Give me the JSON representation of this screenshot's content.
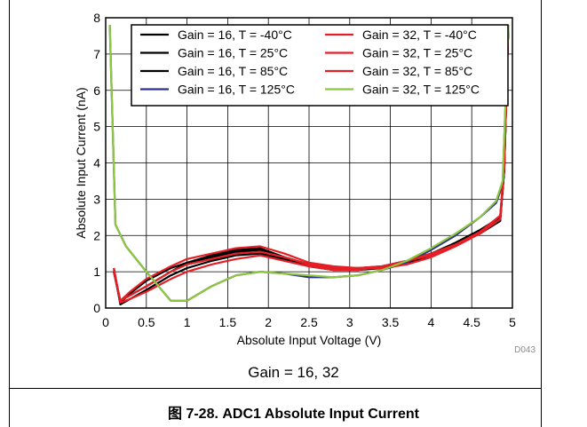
{
  "chart_data": {
    "type": "line",
    "title": "",
    "xlabel": "Absolute Input Voltage (V)",
    "ylabel": "Absolute Input Current (nA)",
    "xlim": [
      0,
      5
    ],
    "ylim": [
      0,
      8
    ],
    "xticks": [
      "0",
      "0.5",
      "1",
      "1.5",
      "2",
      "2.5",
      "3",
      "3.5",
      "4",
      "4.5",
      "5"
    ],
    "yticks": [
      "0",
      "1",
      "2",
      "3",
      "4",
      "5",
      "6",
      "7",
      "8"
    ],
    "grid": true,
    "legend_position": "top-right",
    "series": [
      {
        "name": "Gain = 16, T = -40°C",
        "color": "#000000",
        "x": [
          0.1,
          0.18,
          0.3,
          0.5,
          0.8,
          1.0,
          1.3,
          1.6,
          1.9,
          2.2,
          2.5,
          2.8,
          3.1,
          3.4,
          3.7,
          4.0,
          4.3,
          4.6,
          4.85,
          4.9,
          4.95
        ],
        "y": [
          1.0,
          0.2,
          0.35,
          0.6,
          1.0,
          1.25,
          1.45,
          1.6,
          1.65,
          1.4,
          1.2,
          1.1,
          1.05,
          1.1,
          1.25,
          1.45,
          1.75,
          2.1,
          2.45,
          3.8,
          7.8
        ]
      },
      {
        "name": "Gain = 16, T = 25°C",
        "color": "#000000",
        "x": [
          0.1,
          0.18,
          0.3,
          0.5,
          0.8,
          1.0,
          1.3,
          1.6,
          1.9,
          2.2,
          2.5,
          2.8,
          3.1,
          3.4,
          3.7,
          4.0,
          4.3,
          4.6,
          4.85,
          4.9,
          4.95
        ],
        "y": [
          1.0,
          0.15,
          0.4,
          0.75,
          1.1,
          1.25,
          1.4,
          1.55,
          1.6,
          1.4,
          1.2,
          1.1,
          1.1,
          1.15,
          1.3,
          1.5,
          1.8,
          2.15,
          2.5,
          3.8,
          7.8
        ]
      },
      {
        "name": "Gain = 16, T = 85°C",
        "color": "#000000",
        "x": [
          0.1,
          0.18,
          0.3,
          0.5,
          0.8,
          1.0,
          1.3,
          1.6,
          1.9,
          2.2,
          2.5,
          2.8,
          3.1,
          3.4,
          3.7,
          4.0,
          4.3,
          4.6,
          4.85,
          4.9,
          4.95
        ],
        "y": [
          1.1,
          0.1,
          0.25,
          0.5,
          0.9,
          1.1,
          1.3,
          1.45,
          1.5,
          1.35,
          1.15,
          1.05,
          1.05,
          1.15,
          1.3,
          1.5,
          1.75,
          2.05,
          2.4,
          3.8,
          7.8
        ]
      },
      {
        "name": "Gain = 16, T = 125°C",
        "color": "#2e3192",
        "x": [
          0.05,
          0.12,
          0.25,
          0.5,
          0.8,
          1.0,
          1.3,
          1.6,
          1.9,
          2.2,
          2.5,
          2.8,
          3.1,
          3.4,
          3.7,
          4.0,
          4.3,
          4.6,
          4.8,
          4.88,
          4.95
        ],
        "y": [
          7.8,
          2.3,
          1.7,
          1.0,
          0.2,
          0.2,
          0.6,
          0.9,
          1.0,
          0.95,
          0.85,
          0.85,
          0.9,
          1.05,
          1.25,
          1.6,
          2.0,
          2.5,
          2.9,
          3.4,
          7.8
        ]
      },
      {
        "name": "Gain = 32, T = -40°C",
        "color": "#e41f26",
        "x": [
          0.1,
          0.18,
          0.3,
          0.5,
          0.8,
          1.0,
          1.3,
          1.6,
          1.9,
          2.2,
          2.5,
          2.8,
          3.1,
          3.4,
          3.7,
          4.0,
          4.3,
          4.6,
          4.85,
          4.9,
          4.95
        ],
        "y": [
          1.0,
          0.2,
          0.45,
          0.8,
          1.15,
          1.35,
          1.5,
          1.65,
          1.7,
          1.5,
          1.25,
          1.15,
          1.1,
          1.1,
          1.2,
          1.4,
          1.7,
          2.05,
          2.55,
          3.9,
          7.8
        ]
      },
      {
        "name": "Gain = 32, T = 25°C",
        "color": "#e41f26",
        "x": [
          0.1,
          0.18,
          0.3,
          0.5,
          0.8,
          1.0,
          1.3,
          1.6,
          1.9,
          2.2,
          2.5,
          2.8,
          3.1,
          3.4,
          3.7,
          4.0,
          4.3,
          4.6,
          4.85,
          4.9,
          4.95
        ],
        "y": [
          1.05,
          0.2,
          0.35,
          0.6,
          1.0,
          1.2,
          1.35,
          1.5,
          1.55,
          1.4,
          1.2,
          1.1,
          1.1,
          1.15,
          1.3,
          1.45,
          1.75,
          2.1,
          2.55,
          3.9,
          7.8
        ]
      },
      {
        "name": "Gain = 32, T = 85°C",
        "color": "#e41f26",
        "x": [
          0.1,
          0.18,
          0.3,
          0.5,
          0.8,
          1.0,
          1.3,
          1.6,
          1.9,
          2.2,
          2.5,
          2.8,
          3.1,
          3.4,
          3.7,
          4.0,
          4.3,
          4.6,
          4.85,
          4.9,
          4.95
        ],
        "y": [
          1.1,
          0.15,
          0.25,
          0.45,
          0.8,
          1.0,
          1.2,
          1.35,
          1.45,
          1.3,
          1.15,
          1.05,
          1.05,
          1.15,
          1.3,
          1.5,
          1.75,
          2.05,
          2.45,
          3.9,
          7.8
        ]
      },
      {
        "name": "Gain = 32, T = 125°C",
        "color": "#8dc63f",
        "x": [
          0.05,
          0.12,
          0.25,
          0.5,
          0.8,
          1.0,
          1.3,
          1.6,
          1.9,
          2.2,
          2.5,
          2.8,
          3.1,
          3.4,
          3.7,
          4.0,
          4.3,
          4.6,
          4.8,
          4.88,
          4.95
        ],
        "y": [
          7.8,
          2.3,
          1.7,
          1.0,
          0.2,
          0.2,
          0.6,
          0.9,
          1.0,
          0.95,
          0.9,
          0.85,
          0.9,
          1.05,
          1.3,
          1.65,
          2.05,
          2.5,
          2.95,
          3.5,
          7.8
        ]
      }
    ]
  },
  "chart_code": "D043",
  "subcaption": "Gain = 16, 32",
  "figure_caption": "图 7-28. ADC1 Absolute Input Current"
}
